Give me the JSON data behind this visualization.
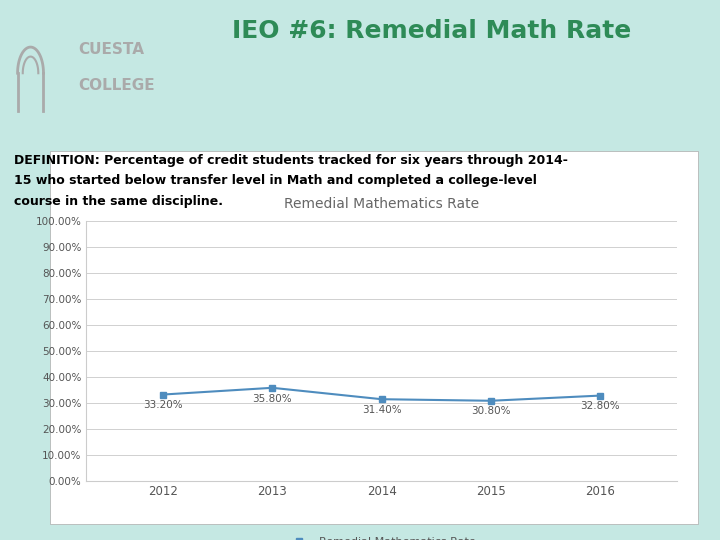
{
  "title": "IEO #6: Remedial Math Rate",
  "definition_line1": "DEFINITION: Percentage of credit students tracked for six years through 2014-",
  "definition_line2": "15 who started below transfer level in Math and completed a college-level",
  "definition_line3": "course in the same discipline.",
  "chart_title": "Remedial Mathematics Rate",
  "years": [
    2012,
    2013,
    2014,
    2015,
    2016
  ],
  "values": [
    0.332,
    0.358,
    0.314,
    0.308,
    0.328
  ],
  "labels": [
    "33.20%",
    "35.80%",
    "31.40%",
    "30.80%",
    "32.80%"
  ],
  "line_color": "#4e8cbe",
  "marker_color": "#4e8cbe",
  "bg_color": "#c5e8e3",
  "chart_bg": "#ffffff",
  "title_color": "#2e8b57",
  "def_color": "#000000",
  "ytick_labels": [
    "0.00%",
    "10.00%",
    "20.00%",
    "30.00%",
    "40.00%",
    "50.00%",
    "60.00%",
    "70.00%",
    "80.00%",
    "90.00%",
    "100.00%"
  ],
  "ytick_values": [
    0.0,
    0.1,
    0.2,
    0.3,
    0.4,
    0.5,
    0.6,
    0.7,
    0.8,
    0.9,
    1.0
  ],
  "legend_label": "Remedial Mathematics Rate",
  "grid_color": "#d0d0d0",
  "figsize": [
    7.2,
    5.4
  ],
  "dpi": 100
}
